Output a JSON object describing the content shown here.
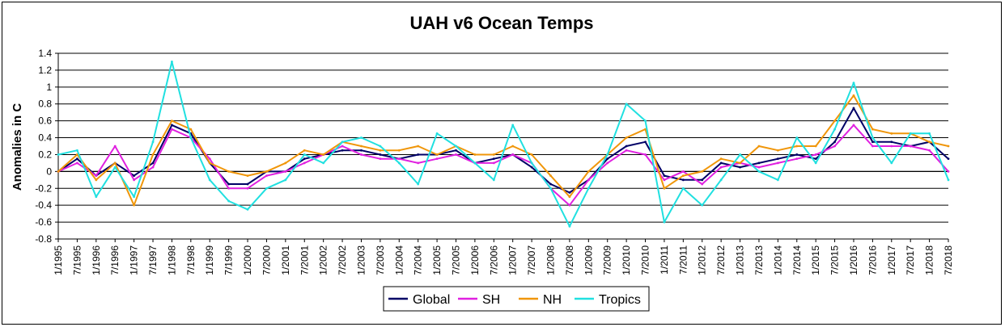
{
  "chart_data": {
    "type": "line",
    "title": "UAH v6 Ocean Temps",
    "ylabel": "Anomalies in C",
    "xlabel": "",
    "ylim": [
      -0.8,
      1.4
    ],
    "yticks": [
      1.4,
      1.2,
      1,
      0.8,
      0.6,
      0.4,
      0.2,
      0,
      -0.2,
      -0.4,
      -0.6,
      -0.8
    ],
    "xlim": [
      "1/1995",
      "7/2018"
    ],
    "x_tick_labels": [
      "1/1995",
      "7/1995",
      "1/1996",
      "7/1996",
      "1/1997",
      "7/1997",
      "1/1998",
      "7/1998",
      "1/1999",
      "7/1999",
      "1/2000",
      "7/2000",
      "1/2001",
      "7/2001",
      "1/2002",
      "7/2002",
      "1/2003",
      "7/2003",
      "1/2004",
      "7/2004",
      "1/2005",
      "7/2005",
      "1/2006",
      "7/2006",
      "1/2007",
      "7/2007",
      "1/2008",
      "7/2008",
      "1/2009",
      "7/2009",
      "1/2010",
      "7/2010",
      "1/2011",
      "7/2011",
      "1/2012",
      "7/2012",
      "1/2013",
      "7/2013",
      "1/2014",
      "7/2014",
      "1/2015",
      "7/2015",
      "1/2016",
      "7/2016",
      "1/2017",
      "7/2017",
      "1/2018",
      "7/2018"
    ],
    "grid": "horizontal",
    "legend_position": "bottom",
    "series": [
      {
        "name": "Global",
        "color": "#000066",
        "x": [
          "1/1995",
          "7/1995",
          "1/1996",
          "7/1996",
          "1/1997",
          "7/1997",
          "1/1998",
          "7/1998",
          "1/1999",
          "7/1999",
          "1/2000",
          "7/2000",
          "1/2001",
          "7/2001",
          "1/2002",
          "7/2002",
          "1/2003",
          "7/2003",
          "1/2004",
          "7/2004",
          "1/2005",
          "7/2005",
          "1/2006",
          "7/2006",
          "1/2007",
          "7/2007",
          "1/2008",
          "7/2008",
          "1/2009",
          "7/2009",
          "1/2010",
          "7/2010",
          "1/2011",
          "7/2011",
          "1/2012",
          "7/2012",
          "1/2013",
          "7/2013",
          "1/2014",
          "7/2014",
          "1/2015",
          "7/2015",
          "1/2016",
          "7/2016",
          "1/2017",
          "7/2017",
          "1/2018",
          "7/2018"
        ],
        "values": [
          0.0,
          0.15,
          -0.05,
          0.1,
          -0.05,
          0.1,
          0.55,
          0.45,
          0.1,
          -0.15,
          -0.15,
          0.0,
          0.0,
          0.15,
          0.2,
          0.25,
          0.25,
          0.2,
          0.15,
          0.2,
          0.2,
          0.25,
          0.1,
          0.15,
          0.2,
          0.05,
          -0.15,
          -0.25,
          -0.1,
          0.15,
          0.3,
          0.35,
          -0.05,
          -0.1,
          -0.1,
          0.1,
          0.05,
          0.1,
          0.15,
          0.2,
          0.15,
          0.35,
          0.75,
          0.35,
          0.35,
          0.3,
          0.35,
          0.15
        ]
      },
      {
        "name": "SH",
        "color": "#e020e0",
        "x": [
          "1/1995",
          "7/1995",
          "1/1996",
          "7/1996",
          "1/1997",
          "7/1997",
          "1/1998",
          "7/1998",
          "1/1999",
          "7/1999",
          "1/2000",
          "7/2000",
          "1/2001",
          "7/2001",
          "1/2002",
          "7/2002",
          "1/2003",
          "7/2003",
          "1/2004",
          "7/2004",
          "1/2005",
          "7/2005",
          "1/2006",
          "7/2006",
          "1/2007",
          "7/2007",
          "1/2008",
          "7/2008",
          "1/2009",
          "7/2009",
          "1/2010",
          "7/2010",
          "1/2011",
          "7/2011",
          "1/2012",
          "7/2012",
          "1/2013",
          "7/2013",
          "1/2014",
          "7/2014",
          "1/2015",
          "7/2015",
          "1/2016",
          "7/2016",
          "1/2017",
          "7/2017",
          "1/2018",
          "7/2018"
        ],
        "values": [
          0.0,
          0.1,
          -0.05,
          0.3,
          -0.1,
          0.05,
          0.5,
          0.4,
          0.15,
          -0.2,
          -0.2,
          -0.05,
          0.0,
          0.1,
          0.2,
          0.3,
          0.2,
          0.15,
          0.15,
          0.1,
          0.15,
          0.2,
          0.1,
          0.1,
          0.2,
          0.1,
          -0.2,
          -0.4,
          -0.1,
          0.1,
          0.25,
          0.2,
          -0.1,
          0.0,
          -0.15,
          0.05,
          0.1,
          0.05,
          0.1,
          0.15,
          0.2,
          0.3,
          0.55,
          0.3,
          0.3,
          0.3,
          0.25,
          0.0
        ]
      },
      {
        "name": "NH",
        "color": "#f0960a",
        "x": [
          "1/1995",
          "7/1995",
          "1/1996",
          "7/1996",
          "1/1997",
          "7/1997",
          "1/1998",
          "7/1998",
          "1/1999",
          "7/1999",
          "1/2000",
          "7/2000",
          "1/2001",
          "7/2001",
          "1/2002",
          "7/2002",
          "1/2003",
          "7/2003",
          "1/2004",
          "7/2004",
          "1/2005",
          "7/2005",
          "1/2006",
          "7/2006",
          "1/2007",
          "7/2007",
          "1/2008",
          "7/2008",
          "1/2009",
          "7/2009",
          "1/2010",
          "7/2010",
          "1/2011",
          "7/2011",
          "1/2012",
          "7/2012",
          "1/2013",
          "7/2013",
          "1/2014",
          "7/2014",
          "1/2015",
          "7/2015",
          "1/2016",
          "7/2016",
          "1/2017",
          "7/2017",
          "1/2018",
          "7/2018"
        ],
        "values": [
          0.0,
          0.2,
          -0.1,
          0.1,
          -0.4,
          0.2,
          0.6,
          0.5,
          0.1,
          0.0,
          -0.05,
          0.0,
          0.1,
          0.25,
          0.2,
          0.35,
          0.3,
          0.25,
          0.25,
          0.3,
          0.2,
          0.3,
          0.2,
          0.2,
          0.3,
          0.2,
          -0.05,
          -0.3,
          0.0,
          0.2,
          0.4,
          0.5,
          -0.2,
          -0.05,
          0.0,
          0.15,
          0.1,
          0.3,
          0.25,
          0.3,
          0.3,
          0.6,
          0.9,
          0.5,
          0.45,
          0.45,
          0.35,
          0.3
        ]
      },
      {
        "name": "Tropics",
        "color": "#20e0e0",
        "x": [
          "1/1995",
          "7/1995",
          "1/1996",
          "7/1996",
          "1/1997",
          "7/1997",
          "1/1998",
          "7/1998",
          "1/1999",
          "7/1999",
          "1/2000",
          "7/2000",
          "1/2001",
          "7/2001",
          "1/2002",
          "7/2002",
          "1/2003",
          "7/2003",
          "1/2004",
          "7/2004",
          "1/2005",
          "7/2005",
          "1/2006",
          "7/2006",
          "1/2007",
          "7/2007",
          "1/2008",
          "7/2008",
          "1/2009",
          "7/2009",
          "1/2010",
          "7/2010",
          "1/2011",
          "7/2011",
          "1/2012",
          "7/2012",
          "1/2013",
          "7/2013",
          "1/2014",
          "7/2014",
          "1/2015",
          "7/2015",
          "1/2016",
          "7/2016",
          "1/2017",
          "7/2017",
          "1/2018",
          "7/2018"
        ],
        "values": [
          0.2,
          0.25,
          -0.3,
          0.05,
          -0.3,
          0.35,
          1.3,
          0.4,
          -0.1,
          -0.35,
          -0.45,
          -0.2,
          -0.1,
          0.2,
          0.1,
          0.35,
          0.4,
          0.3,
          0.1,
          -0.15,
          0.45,
          0.3,
          0.1,
          -0.1,
          0.55,
          0.1,
          -0.2,
          -0.65,
          -0.2,
          0.2,
          0.8,
          0.6,
          -0.6,
          -0.2,
          -0.4,
          -0.1,
          0.2,
          0.0,
          -0.1,
          0.4,
          0.1,
          0.5,
          1.05,
          0.4,
          0.1,
          0.45,
          0.45,
          -0.1
        ]
      }
    ]
  }
}
